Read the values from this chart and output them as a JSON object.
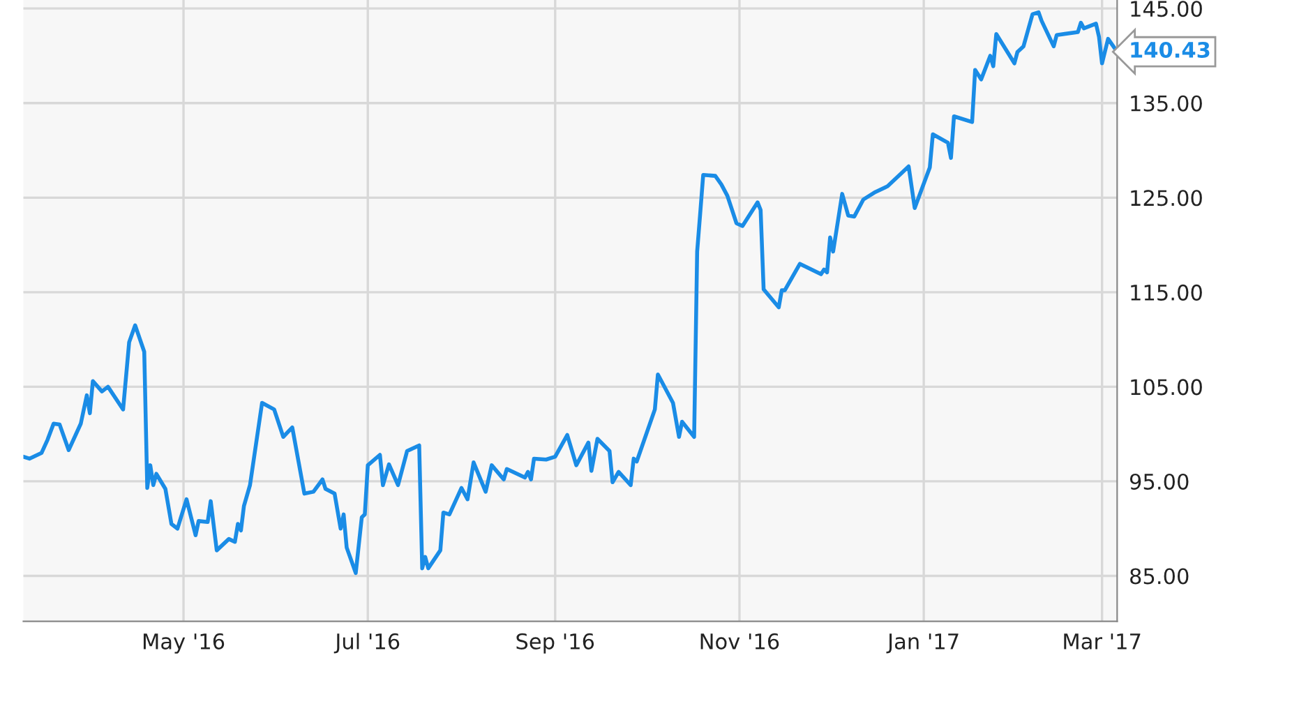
{
  "chart_data": {
    "type": "line",
    "x": [
      "2016-03-09",
      "2016-03-11",
      "2016-03-15",
      "2016-03-17",
      "2016-03-19",
      "2016-03-21",
      "2016-03-24",
      "2016-03-28",
      "2016-03-30",
      "2016-03-31",
      "2016-04-01",
      "2016-04-04",
      "2016-04-06",
      "2016-04-11",
      "2016-04-13",
      "2016-04-15",
      "2016-04-18",
      "2016-04-19",
      "2016-04-20",
      "2016-04-21",
      "2016-04-22",
      "2016-04-25",
      "2016-04-27",
      "2016-04-29",
      "2016-05-02",
      "2016-05-05",
      "2016-05-06",
      "2016-05-09",
      "2016-05-10",
      "2016-05-12",
      "2016-05-16",
      "2016-05-18",
      "2016-05-19",
      "2016-05-20",
      "2016-05-21",
      "2016-05-23",
      "2016-05-27",
      "2016-05-31",
      "2016-06-03",
      "2016-06-06",
      "2016-06-10",
      "2016-06-13",
      "2016-06-16",
      "2016-06-17",
      "2016-06-20",
      "2016-06-22",
      "2016-06-23",
      "2016-06-24",
      "2016-06-27",
      "2016-06-29",
      "2016-06-30",
      "2016-07-01",
      "2016-07-05",
      "2016-07-06",
      "2016-07-08",
      "2016-07-11",
      "2016-07-14",
      "2016-07-18",
      "2016-07-19",
      "2016-07-20",
      "2016-07-21",
      "2016-07-25",
      "2016-07-26",
      "2016-07-28",
      "2016-08-01",
      "2016-08-03",
      "2016-08-05",
      "2016-08-09",
      "2016-08-11",
      "2016-08-15",
      "2016-08-16",
      "2016-08-22",
      "2016-08-23",
      "2016-08-24",
      "2016-08-25",
      "2016-08-29",
      "2016-09-01",
      "2016-09-05",
      "2016-09-08",
      "2016-09-12",
      "2016-09-13",
      "2016-09-15",
      "2016-09-19",
      "2016-09-20",
      "2016-09-22",
      "2016-09-26",
      "2016-09-27",
      "2016-09-28",
      "2016-10-04",
      "2016-10-05",
      "2016-10-10",
      "2016-10-12",
      "2016-10-13",
      "2016-10-17",
      "2016-10-18",
      "2016-10-19",
      "2016-10-20",
      "2016-10-24",
      "2016-10-26",
      "2016-10-28",
      "2016-10-31",
      "2016-11-02",
      "2016-11-07",
      "2016-11-08",
      "2016-11-09",
      "2016-11-14",
      "2016-11-15",
      "2016-11-16",
      "2016-11-21",
      "2016-11-28",
      "2016-11-29",
      "2016-11-30",
      "2016-12-01",
      "2016-12-02",
      "2016-12-05",
      "2016-12-07",
      "2016-12-09",
      "2016-12-12",
      "2016-12-16",
      "2016-12-20",
      "2016-12-27",
      "2016-12-29",
      "2017-01-03",
      "2017-01-04",
      "2017-01-09",
      "2017-01-10",
      "2017-01-11",
      "2017-01-17",
      "2017-01-18",
      "2017-01-20",
      "2017-01-23",
      "2017-01-24",
      "2017-01-25",
      "2017-01-31",
      "2017-02-01",
      "2017-02-03",
      "2017-02-06",
      "2017-02-08",
      "2017-02-09",
      "2017-02-13",
      "2017-02-14",
      "2017-02-21",
      "2017-02-22",
      "2017-02-23",
      "2017-02-27",
      "2017-02-28",
      "2017-03-01",
      "2017-03-03",
      "2017-03-06"
    ],
    "series": [
      {
        "color": "#1a8ce6",
        "values": [
          97.6,
          97.4,
          98.0,
          99.4,
          101.1,
          101.0,
          98.3,
          101.1,
          104.1,
          102.2,
          105.6,
          104.5,
          105.0,
          102.6,
          109.7,
          111.5,
          108.7,
          94.3,
          96.7,
          94.6,
          95.8,
          94.2,
          90.5,
          90.0,
          93.1,
          89.3,
          90.8,
          90.7,
          92.9,
          87.7,
          88.9,
          88.6,
          90.5,
          89.8,
          92.4,
          94.6,
          103.3,
          102.6,
          99.7,
          100.7,
          93.7,
          93.9,
          95.2,
          94.2,
          93.7,
          90.0,
          91.5,
          88.0,
          85.3,
          91.2,
          91.5,
          96.7,
          97.8,
          94.6,
          96.8,
          94.6,
          98.2,
          98.8,
          85.8,
          87.0,
          85.8,
          87.7,
          91.7,
          91.5,
          94.3,
          93.1,
          97.0,
          93.9,
          96.7,
          95.2,
          96.3,
          95.4,
          96.0,
          95.2,
          97.4,
          97.3,
          97.6,
          99.9,
          96.7,
          99.1,
          96.1,
          99.5,
          98.2,
          94.9,
          96.0,
          94.6,
          97.4,
          97.1,
          102.6,
          106.3,
          103.3,
          99.7,
          101.3,
          99.7,
          119.3,
          123.3,
          127.4,
          127.3,
          126.4,
          125.2,
          122.3,
          122.0,
          124.5,
          123.7,
          115.3,
          113.4,
          115.2,
          115.2,
          118.0,
          116.9,
          117.4,
          117.1,
          120.8,
          119.3,
          125.4,
          123.1,
          123.0,
          124.8,
          125.6,
          126.2,
          128.3,
          123.9,
          128.2,
          131.7,
          130.8,
          129.2,
          133.6,
          133.0,
          138.5,
          137.5,
          140.0,
          138.9,
          142.3,
          139.2,
          140.4,
          141.0,
          144.4,
          144.6,
          143.7,
          141.0,
          142.2,
          142.5,
          143.5,
          142.9,
          143.4,
          142.0,
          139.2,
          141.8,
          140.43
        ]
      }
    ],
    "xlim": [
      "2016-03-09",
      "2017-03-06"
    ],
    "xticks": [
      {
        "value": "2016-05-01",
        "label": "May '16"
      },
      {
        "value": "2016-07-01",
        "label": "Jul '16"
      },
      {
        "value": "2016-09-01",
        "label": "Sep '16"
      },
      {
        "value": "2016-11-01",
        "label": "Nov '16"
      },
      {
        "value": "2017-01-01",
        "label": "Jan '17"
      },
      {
        "value": "2017-03-01",
        "label": "Mar '17"
      }
    ],
    "ylim": [
      80.2,
      145.9
    ],
    "yticks": [
      {
        "value": 85,
        "label": "85.00"
      },
      {
        "value": 95,
        "label": "95.00"
      },
      {
        "value": 105,
        "label": "105.00"
      },
      {
        "value": 115,
        "label": "115.00"
      },
      {
        "value": 125,
        "label": "125.00"
      },
      {
        "value": 135,
        "label": "135.00"
      },
      {
        "value": 145,
        "label": "145.00"
      }
    ],
    "annotations": [
      {
        "text": "140.43",
        "x": "2017-03-06",
        "y": 140.43
      }
    ],
    "grid": true,
    "marker": "none",
    "line_style": "solid"
  }
}
